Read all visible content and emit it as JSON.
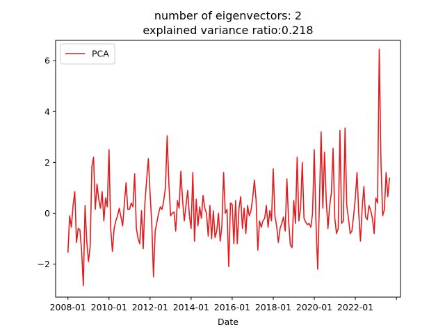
{
  "chart_data": {
    "type": "line",
    "title_lines": [
      "number of eigenvectors: 2",
      "explained variance ratio:0.218"
    ],
    "xlabel": "Date",
    "ylabel": "",
    "x_ticks": [
      {
        "pos": 2008.0,
        "label": "2008-01"
      },
      {
        "pos": 2010.0,
        "label": "2010-01"
      },
      {
        "pos": 2012.0,
        "label": "2012-01"
      },
      {
        "pos": 2014.0,
        "label": "2014-01"
      },
      {
        "pos": 2016.0,
        "label": "2016-01"
      },
      {
        "pos": 2018.0,
        "label": "2018-01"
      },
      {
        "pos": 2020.0,
        "label": "2020-01"
      },
      {
        "pos": 2022.0,
        "label": "2022-01"
      },
      {
        "pos": 2024.0,
        "label": ""
      }
    ],
    "y_ticks": [
      -2,
      0,
      2,
      4,
      6
    ],
    "xlim": [
      2007.4,
      2024.2
    ],
    "ylim": [
      -3.3,
      6.8
    ],
    "grid": false,
    "legend": {
      "position": "top-left",
      "entries": [
        "PCA"
      ]
    },
    "series": [
      {
        "name": "PCA",
        "color": "#e41a1c",
        "x_start": 2008.0,
        "x_step": 0.08333,
        "values": [
          -1.55,
          -0.1,
          -0.55,
          0.3,
          0.85,
          -1.15,
          -0.6,
          -0.65,
          -1.5,
          -2.85,
          0.3,
          -1.1,
          -1.9,
          -1.3,
          1.85,
          2.2,
          0.15,
          1.15,
          0.55,
          0.2,
          0.85,
          -0.3,
          0.6,
          0.25,
          2.5,
          -0.6,
          -1.5,
          -0.6,
          -0.3,
          -0.1,
          0.2,
          -0.15,
          -0.5,
          0.4,
          1.2,
          0.15,
          0.15,
          0.4,
          0.25,
          1.55,
          -0.6,
          -1.0,
          -1.2,
          0.1,
          -1.4,
          0.4,
          1.3,
          2.15,
          0.8,
          -0.4,
          -2.5,
          -0.7,
          -0.35,
          0.0,
          0.25,
          0.15,
          0.5,
          1.0,
          3.05,
          1.2,
          -0.1,
          0.0,
          0.05,
          -0.7,
          0.5,
          0.2,
          1.65,
          0.55,
          -0.3,
          0.3,
          0.9,
          -0.1,
          -0.6,
          1.6,
          -1.1,
          0.55,
          -0.5,
          0.25,
          -0.2,
          0.7,
          0.2,
          0.0,
          -0.9,
          0.3,
          -1.0,
          0.1,
          -0.95,
          -0.7,
          0.0,
          -1.1,
          -0.5,
          1.6,
          0.0,
          0.15,
          -2.1,
          0.4,
          0.35,
          -1.2,
          0.5,
          -1.2,
          0.2,
          0.65,
          -0.6,
          0.2,
          -0.8,
          0.3,
          -0.1,
          0.1,
          0.6,
          1.3,
          0.5,
          -1.45,
          -0.3,
          -0.55,
          -0.3,
          -0.2,
          0.3,
          -0.55,
          0.1,
          -0.3,
          1.75,
          -0.1,
          -0.5,
          -1.15,
          -0.6,
          -0.4,
          -0.15,
          -0.7,
          1.35,
          -0.3,
          -1.25,
          -1.35,
          0.5,
          -0.4,
          2.2,
          -0.3,
          0.2,
          2.0,
          -0.2,
          -0.35,
          -0.45,
          -0.4,
          -0.55,
          0.0,
          2.5,
          -0.4,
          -2.2,
          0.4,
          3.2,
          0.2,
          2.4,
          0.5,
          -0.6,
          0.3,
          0.8,
          2.55,
          -0.2,
          -0.8,
          -0.6,
          3.25,
          -0.4,
          -0.3,
          3.35,
          0.3,
          -0.2,
          -0.8,
          -0.7,
          -0.1,
          0.6,
          1.6,
          0.0,
          -1.1,
          0.2,
          1.05,
          -0.15,
          -0.25,
          0.3,
          0.1,
          -0.2,
          -0.8,
          0.6,
          0.4,
          6.45,
          2.0,
          -0.1,
          0.15,
          1.6,
          0.65,
          1.4
        ]
      }
    ]
  }
}
